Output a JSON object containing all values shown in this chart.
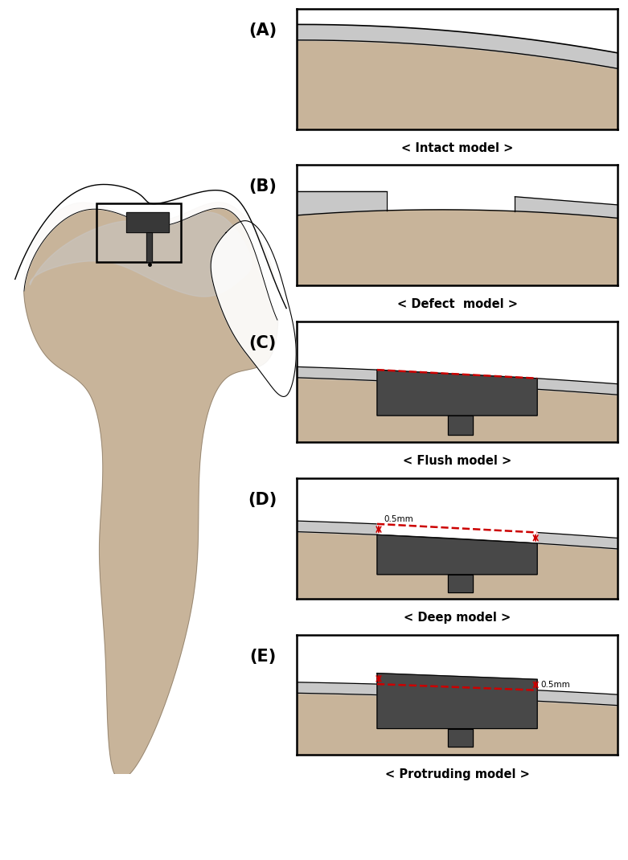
{
  "bg_color": "#ffffff",
  "bone_color": "#c8b49a",
  "bone_color2": "#bfaa8e",
  "cartilage_color": "#c8c8c8",
  "cartilage_white": "#e8e8e8",
  "implant_color": "#484848",
  "red_color": "#cc0000",
  "black": "#000000",
  "labels": [
    "(A)",
    "(B)",
    "(C)",
    "(D)",
    "(E)"
  ],
  "captions": [
    "< Intact model >",
    "< Defect  model >",
    "< Flush model >",
    "< Deep model >",
    "< Protruding model >"
  ],
  "panel_label_fontsize": 15,
  "caption_fontsize": 10.5
}
